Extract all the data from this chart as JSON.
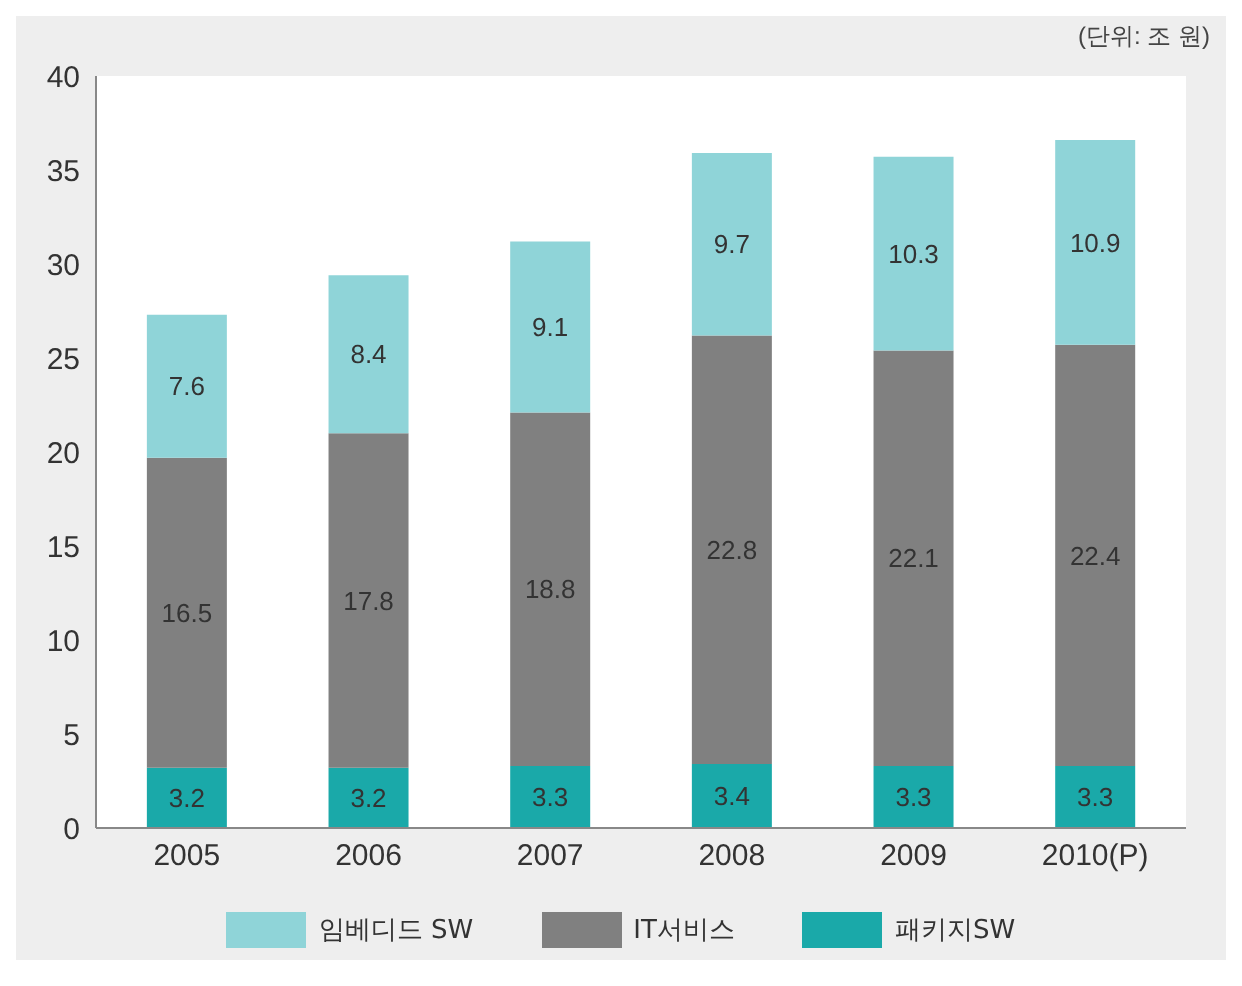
{
  "chart_data": {
    "type": "bar",
    "stacked": true,
    "categories": [
      "2005",
      "2006",
      "2007",
      "2008",
      "2009",
      "2010(P)"
    ],
    "series": [
      {
        "name": "패키지SW",
        "color": "#1aa9a9",
        "values": [
          3.2,
          3.2,
          3.3,
          3.4,
          3.3,
          3.3
        ]
      },
      {
        "name": "IT서비스",
        "color": "#808080",
        "values": [
          16.5,
          17.8,
          18.8,
          22.8,
          22.1,
          22.4
        ]
      },
      {
        "name": "임베디드 SW",
        "color": "#8fd4d8",
        "values": [
          7.6,
          8.4,
          9.1,
          9.7,
          10.3,
          10.9
        ]
      }
    ],
    "ylim": [
      0,
      40
    ],
    "yticks": [
      0,
      5,
      10,
      15,
      20,
      25,
      30,
      35,
      40
    ],
    "grid": false,
    "legend": "bottom",
    "data_labels": true,
    "annotations": [
      "(단위: 조 원)"
    ]
  }
}
